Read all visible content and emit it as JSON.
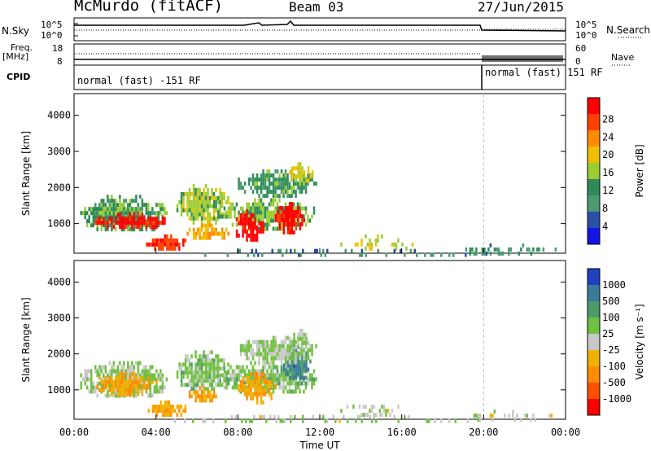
{
  "header": {
    "station": "McMurdo (fitACF)",
    "beam": "Beam 03",
    "date": "27/Jun/2015"
  },
  "status_panels": {
    "nsky_label": "N.Sky",
    "nsky_left_ticks": [
      "10^5",
      "10^0"
    ],
    "nsearch_label": "N.Search",
    "nsearch_right_ticks": [
      "10^5",
      "10^0"
    ],
    "freq_label": "Freq.",
    "freq_unit": "[MHz]",
    "freq_ticks": [
      "18",
      "8"
    ],
    "nave_label": "Nave",
    "nave_ticks": [
      "60",
      "0"
    ],
    "cpid_label": "CPID",
    "cpid_segments": [
      {
        "label": "normal (fast) -151 RF",
        "start_hour": 0,
        "end_hour": 20
      },
      {
        "label": "normal (fast) 151 RF",
        "start_hour": 20,
        "end_hour": 24
      }
    ]
  },
  "colors": {
    "power_scale": [
      "#1414e6",
      "#2a4fa8",
      "#4c9a72",
      "#2e8b57",
      "#9acd32",
      "#f0c000",
      "#ff8c00",
      "#ff4000",
      "#ff0000"
    ],
    "velocity_scale": [
      "#2040c0",
      "#3a7a9a",
      "#4a9a6a",
      "#70c040",
      "#c8c8c8",
      "#f0b000",
      "#ff8c00",
      "#ff5000",
      "#ff0000"
    ]
  },
  "chart_data": [
    {
      "type": "heatmap",
      "title": "",
      "xlabel": "Time UT",
      "ylabel": "Slant Range [km]",
      "xlim": [
        0,
        24
      ],
      "ylim": [
        180,
        4600
      ],
      "x_ticks": [
        "00:00",
        "04:00",
        "08:00",
        "12:00",
        "16:00",
        "20:00",
        "00:00"
      ],
      "y_ticks": [
        1000,
        2000,
        3000,
        4000
      ],
      "colorbar": {
        "label": "Power [dB]",
        "ticks": [
          "4",
          "8",
          "12",
          "16",
          "20",
          "24",
          "28"
        ],
        "range": [
          0,
          30
        ]
      },
      "regions": [
        {
          "t0": 0.3,
          "t1": 4.5,
          "r0": 800,
          "r1": 1800,
          "value": 12
        },
        {
          "t0": 1.0,
          "t1": 4.5,
          "r0": 900,
          "r1": 1300,
          "value": 28
        },
        {
          "t0": 3.5,
          "t1": 5.5,
          "r0": 300,
          "r1": 700,
          "value": 26
        },
        {
          "t0": 5.0,
          "t1": 7.5,
          "r0": 1000,
          "r1": 2100,
          "value": 15
        },
        {
          "t0": 5.5,
          "t1": 7.5,
          "r0": 600,
          "r1": 1000,
          "value": 20
        },
        {
          "t0": 7.0,
          "t1": 11.8,
          "r0": 900,
          "r1": 1700,
          "value": 14
        },
        {
          "t0": 7.8,
          "t1": 9.2,
          "r0": 550,
          "r1": 1400,
          "value": 29
        },
        {
          "t0": 9.8,
          "t1": 11.2,
          "r0": 800,
          "r1": 1600,
          "value": 28
        },
        {
          "t0": 8.0,
          "t1": 11.8,
          "r0": 1800,
          "r1": 2500,
          "value": 11
        },
        {
          "t0": 10.5,
          "t1": 11.6,
          "r0": 2200,
          "r1": 2700,
          "value": 17
        },
        {
          "t0": 0.0,
          "t1": 24.0,
          "r0": 180,
          "r1": 300,
          "value": 7
        },
        {
          "t0": 13.0,
          "t1": 16.5,
          "r0": 300,
          "r1": 700,
          "value": 16
        },
        {
          "t0": 18.5,
          "t1": 23.5,
          "r0": 200,
          "r1": 450,
          "value": 9
        }
      ]
    },
    {
      "type": "heatmap",
      "title": "",
      "xlabel": "Time UT",
      "ylabel": "Slant Range [km]",
      "xlim": [
        0,
        24
      ],
      "ylim": [
        180,
        4600
      ],
      "x_ticks": [
        "00:00",
        "04:00",
        "08:00",
        "12:00",
        "16:00",
        "20:00",
        "00:00"
      ],
      "y_ticks": [
        1000,
        2000,
        3000,
        4000
      ],
      "colorbar": {
        "label": "Velocity [m s^-1]",
        "ticks": [
          "1000",
          "500",
          "100",
          "25",
          "-25",
          "-100",
          "-500",
          "-1000"
        ],
        "range": [
          -1000,
          1000
        ]
      },
      "regions": [
        {
          "t0": 0.3,
          "t1": 4.5,
          "r0": 800,
          "r1": 1800,
          "value": 150
        },
        {
          "t0": 1.0,
          "t1": 4.0,
          "r0": 900,
          "r1": 1500,
          "value": -300
        },
        {
          "t0": 3.5,
          "t1": 5.5,
          "r0": 300,
          "r1": 700,
          "value": -300
        },
        {
          "t0": 5.0,
          "t1": 7.5,
          "r0": 1000,
          "r1": 2100,
          "value": 200
        },
        {
          "t0": 5.5,
          "t1": 7.0,
          "r0": 700,
          "r1": 1100,
          "value": -300
        },
        {
          "t0": 7.0,
          "t1": 11.8,
          "r0": 900,
          "r1": 1800,
          "value": 200
        },
        {
          "t0": 8.0,
          "t1": 9.8,
          "r0": 700,
          "r1": 1500,
          "value": -300
        },
        {
          "t0": 10.2,
          "t1": 11.5,
          "r0": 1300,
          "r1": 2300,
          "value": 600
        },
        {
          "t0": 8.0,
          "t1": 11.8,
          "r0": 1800,
          "r1": 2500,
          "value": 150
        },
        {
          "t0": 10.5,
          "t1": 11.6,
          "r0": 2200,
          "r1": 2700,
          "value": 120
        },
        {
          "t0": 0.0,
          "t1": 24.0,
          "r0": 180,
          "r1": 300,
          "value": 60
        },
        {
          "t0": 13.0,
          "t1": 16.5,
          "r0": 300,
          "r1": 700,
          "value": 60
        },
        {
          "t0": 18.5,
          "t1": 23.5,
          "r0": 200,
          "r1": 450,
          "value": 0
        }
      ]
    }
  ]
}
